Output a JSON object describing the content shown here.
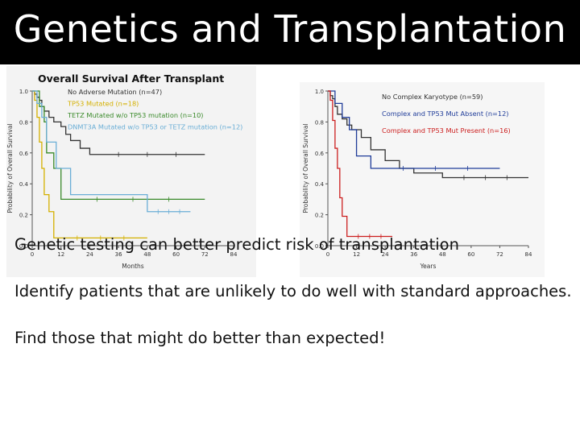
{
  "slide": {
    "title": "Genetics and Transplantation",
    "bullets": [
      "Genetic testing can better predict risk of transplantation",
      "Identify patients that are unlikely to do well with standard approaches.",
      "Find those that might do better than expected!"
    ]
  },
  "chart_data": [
    {
      "type": "line",
      "step": true,
      "title": "Overall Survival After Transplant",
      "xlabel": "Months",
      "ylabel": "Probability of Overall Survival",
      "xlim": [
        0,
        84
      ],
      "ylim": [
        0,
        1
      ],
      "xticks": [
        "0",
        "12",
        "24",
        "36",
        "48",
        "60",
        "72",
        "84"
      ],
      "yticks": [
        "0.0",
        "0.2",
        "0.4",
        "0.6",
        "0.8",
        "1.0"
      ],
      "legend_position": "top",
      "series": [
        {
          "name": "No Adverse Mutation (n=47)",
          "color": "#333333",
          "x": [
            0,
            1,
            2,
            3,
            4,
            5,
            7,
            9,
            12,
            14,
            16,
            20,
            24,
            72
          ],
          "y": [
            1.0,
            0.98,
            0.96,
            0.94,
            0.9,
            0.87,
            0.83,
            0.8,
            0.77,
            0.72,
            0.68,
            0.63,
            0.59,
            0.59
          ]
        },
        {
          "name": "TP53 Mutated (n=18)",
          "color": "#d4b000",
          "x": [
            0,
            1,
            2,
            3,
            4,
            5,
            7,
            9,
            48
          ],
          "y": [
            1.0,
            0.94,
            0.83,
            0.67,
            0.5,
            0.33,
            0.22,
            0.05,
            0.05
          ]
        },
        {
          "name": "TETZ Mutated w/o TP53 mutation (n=10)",
          "color": "#3a8a2a",
          "x": [
            0,
            3,
            5,
            6,
            9,
            12,
            72
          ],
          "y": [
            1.0,
            0.9,
            0.8,
            0.6,
            0.5,
            0.3,
            0.3
          ]
        },
        {
          "name": "DNMT3A Mutated w/o TP53 or TETZ mutation (n=12)",
          "color": "#6aaed6",
          "x": [
            0,
            2,
            4,
            6,
            10,
            16,
            24,
            48,
            66
          ],
          "y": [
            1.0,
            0.92,
            0.83,
            0.67,
            0.5,
            0.33,
            0.33,
            0.22,
            0.22
          ]
        }
      ]
    },
    {
      "type": "line",
      "step": true,
      "title": "",
      "xlabel": "Years",
      "ylabel": "Probability of Overall Survival",
      "xlim": [
        0,
        84
      ],
      "ylim": [
        0,
        1
      ],
      "xticks": [
        "0",
        "12",
        "24",
        "36",
        "48",
        "60",
        "72",
        "84"
      ],
      "yticks": [
        "0.0",
        "0.2",
        "0.4",
        "0.6",
        "0.8",
        "1.0"
      ],
      "legend_position": "top-right",
      "series": [
        {
          "name": "No Complex Karyotype (n=59)",
          "color": "#333333",
          "x": [
            0,
            1,
            2,
            3,
            4,
            6,
            8,
            10,
            14,
            18,
            24,
            30,
            36,
            48,
            84
          ],
          "y": [
            1.0,
            0.97,
            0.95,
            0.9,
            0.85,
            0.82,
            0.78,
            0.75,
            0.7,
            0.62,
            0.55,
            0.5,
            0.47,
            0.44,
            0.44
          ]
        },
        {
          "name": "Complex and TP53 Mut Absent (n=12)",
          "color": "#1f3c99",
          "x": [
            0,
            3,
            6,
            9,
            12,
            18,
            72
          ],
          "y": [
            1.0,
            0.92,
            0.83,
            0.75,
            0.58,
            0.5,
            0.5
          ]
        },
        {
          "name": "Complex and TP53 Mut Present (n=16)",
          "color": "#cc1f1f",
          "x": [
            0,
            1,
            2,
            3,
            4,
            5,
            6,
            8,
            27
          ],
          "y": [
            1.0,
            0.94,
            0.81,
            0.63,
            0.5,
            0.31,
            0.19,
            0.06,
            0.06
          ]
        }
      ]
    }
  ]
}
